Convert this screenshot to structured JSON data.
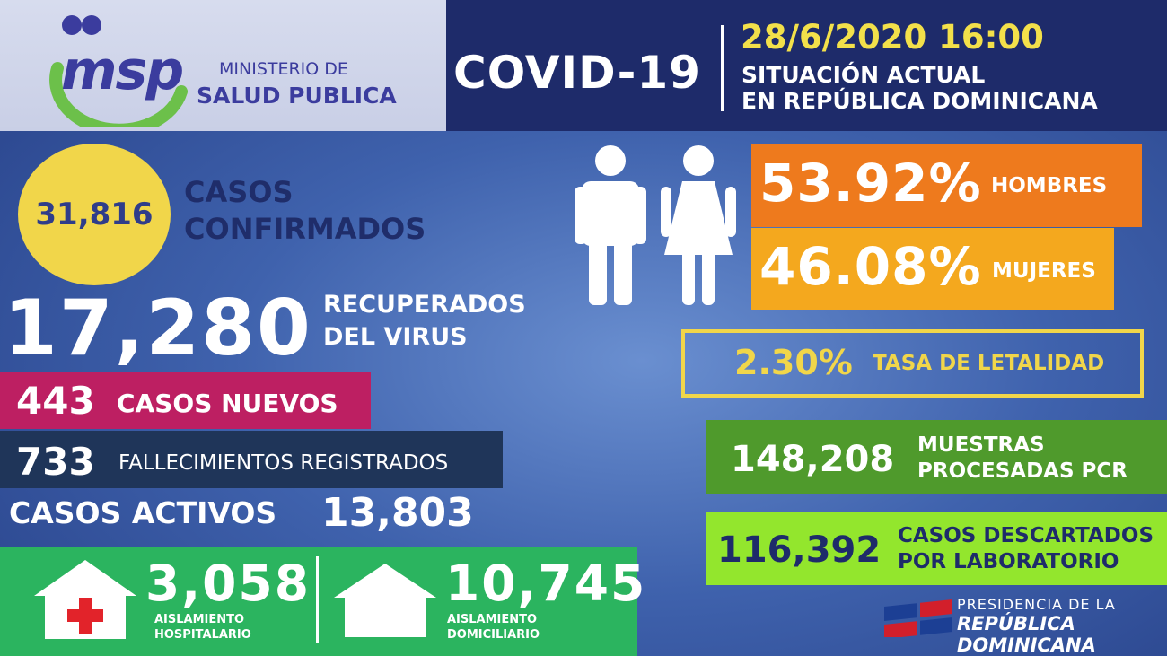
{
  "header": {
    "title": "COVID-19",
    "datetime": "28/6/2020 16:00",
    "subtitle_line1": "SITUACIÓN ACTUAL",
    "subtitle_line2": "EN REPÚBLICA DOMINICANA"
  },
  "logo": {
    "acronym": "msp",
    "line1": "MINISTERIO DE",
    "line2": "SALUD PUBLICA"
  },
  "confirmed": {
    "value": "31,816",
    "label_line1": "CASOS",
    "label_line2": "CONFIRMADOS"
  },
  "recovered": {
    "value": "17,280",
    "label_line1": "RECUPERADOS",
    "label_line2": "DEL VIRUS"
  },
  "new_cases": {
    "value": "443",
    "label": "CASOS NUEVOS"
  },
  "deaths": {
    "value": "733",
    "label": "FALLECIMIENTOS REGISTRADOS"
  },
  "active": {
    "label": "CASOS ACTIVOS",
    "value": "13,803"
  },
  "isolation": {
    "hospital": {
      "value": "3,058",
      "label_line1": "AISLAMIENTO",
      "label_line2": "HOSPITALARIO"
    },
    "home": {
      "value": "10,745",
      "label_line1": "AISLAMIENTO",
      "label_line2": "DOMICILIARIO"
    }
  },
  "gender": {
    "men": {
      "value": "53.92%",
      "label": "HOMBRES"
    },
    "women": {
      "value": "46.08%",
      "label": "MUJERES"
    }
  },
  "lethality": {
    "value": "2.30%",
    "label": "TASA DE LETALIDAD"
  },
  "samples": {
    "value": "148,208",
    "label_line1": "MUESTRAS",
    "label_line2": "PROCESADAS PCR"
  },
  "discarded": {
    "value": "116,392",
    "label_line1": "CASOS DESCARTADOS",
    "label_line2": "POR LABORATORIO"
  },
  "presidency": {
    "line1": "PRESIDENCIA DE LA",
    "line2": "REPÚBLICA DOMINICANA"
  },
  "colors": {
    "navy": "#1e2b6a",
    "yellow": "#f1d64a",
    "magenta": "#bd1f62",
    "orange": "#ee7a1d",
    "amber": "#f4a81e",
    "green": "#2bb45f",
    "dark_green": "#4f9a2c",
    "lime": "#93e62d"
  },
  "icons": [
    "person-icons",
    "hospital-icon",
    "house-icon",
    "dominican-flag-icon"
  ]
}
